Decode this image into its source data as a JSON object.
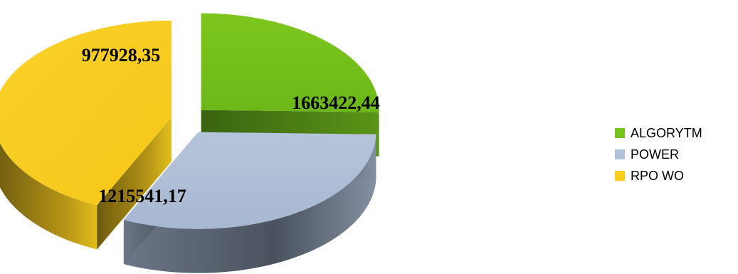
{
  "chart_data": {
    "type": "pie",
    "style": "3d-exploded",
    "categories": [
      "ALGORYTM",
      "POWER",
      "RPO WO"
    ],
    "values": [
      977928.35,
      1215541.17,
      1663422.44
    ],
    "data_labels": [
      "977928,35",
      "1215541,17",
      "1663422,44"
    ],
    "colors": [
      "#76c41b",
      "#b0c0d8",
      "#facd1e"
    ],
    "legend_position": "right"
  }
}
